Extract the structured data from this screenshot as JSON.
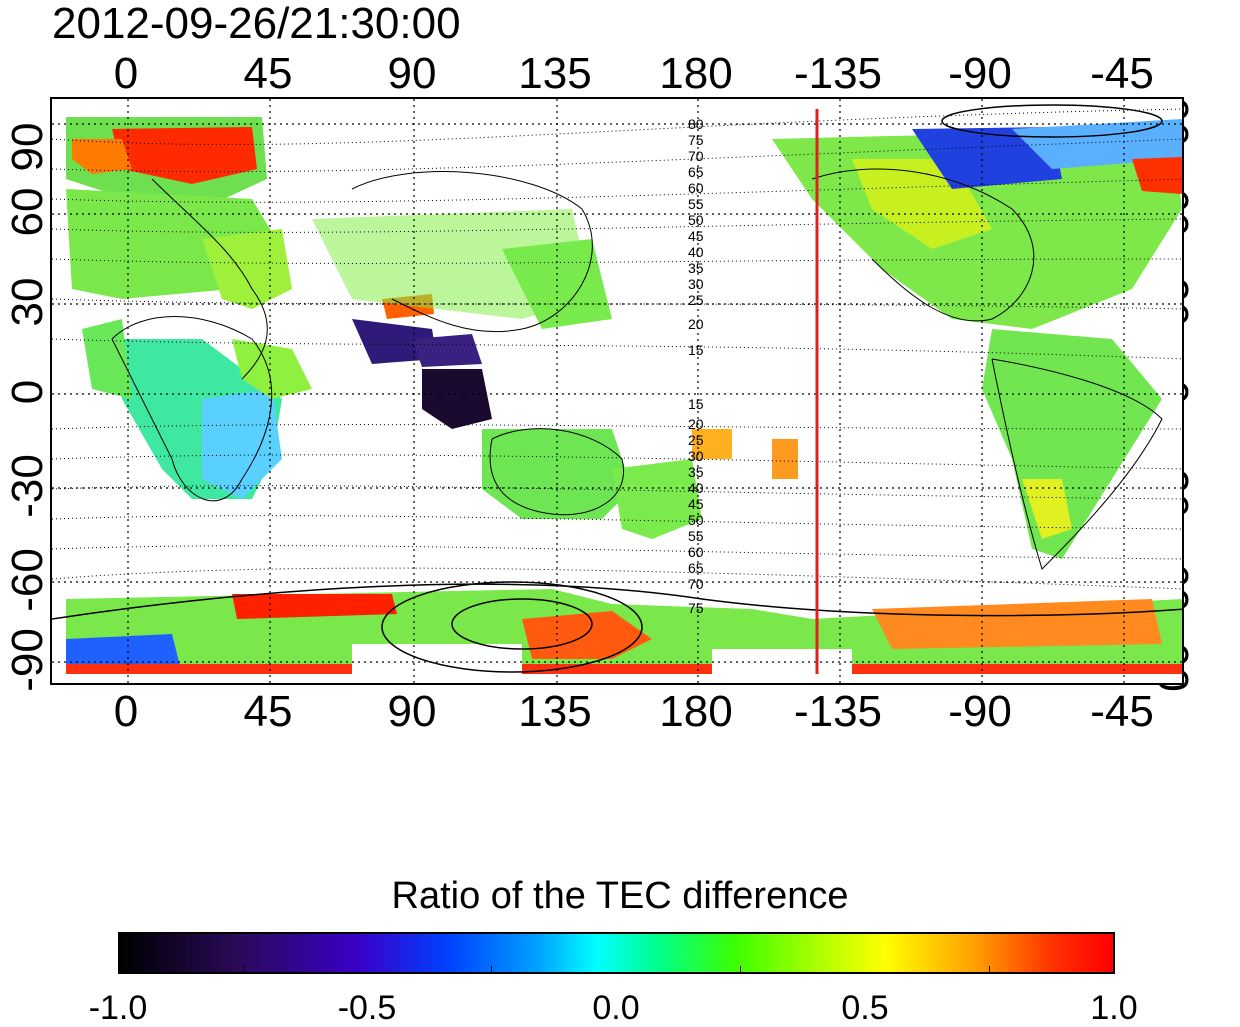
{
  "timestamp": "2012-09-26/21:30:00",
  "map": {
    "lon_ticks": [
      "0",
      "45",
      "90",
      "135",
      "180",
      "-135",
      "-90",
      "-45"
    ],
    "lat_ticks": [
      "90",
      "60",
      "30",
      "0",
      "-30",
      "-60",
      "-90"
    ],
    "contour_labels_north": [
      "80",
      "75",
      "70",
      "65",
      "60",
      "55",
      "50",
      "45",
      "40",
      "35",
      "30",
      "25",
      "20",
      "15"
    ],
    "contour_labels_south": [
      "15",
      "20",
      "25",
      "30",
      "35",
      "40",
      "45",
      "50",
      "55",
      "60",
      "65",
      "70",
      "75"
    ],
    "terminator_color": "#e02020",
    "grid": true
  },
  "colorbar": {
    "title": "Ratio of the TEC difference",
    "tick_labels": [
      "-1.0",
      "-0.5",
      "0.0",
      "0.5",
      "1.0"
    ],
    "range": [
      -1.0,
      1.0
    ]
  }
}
